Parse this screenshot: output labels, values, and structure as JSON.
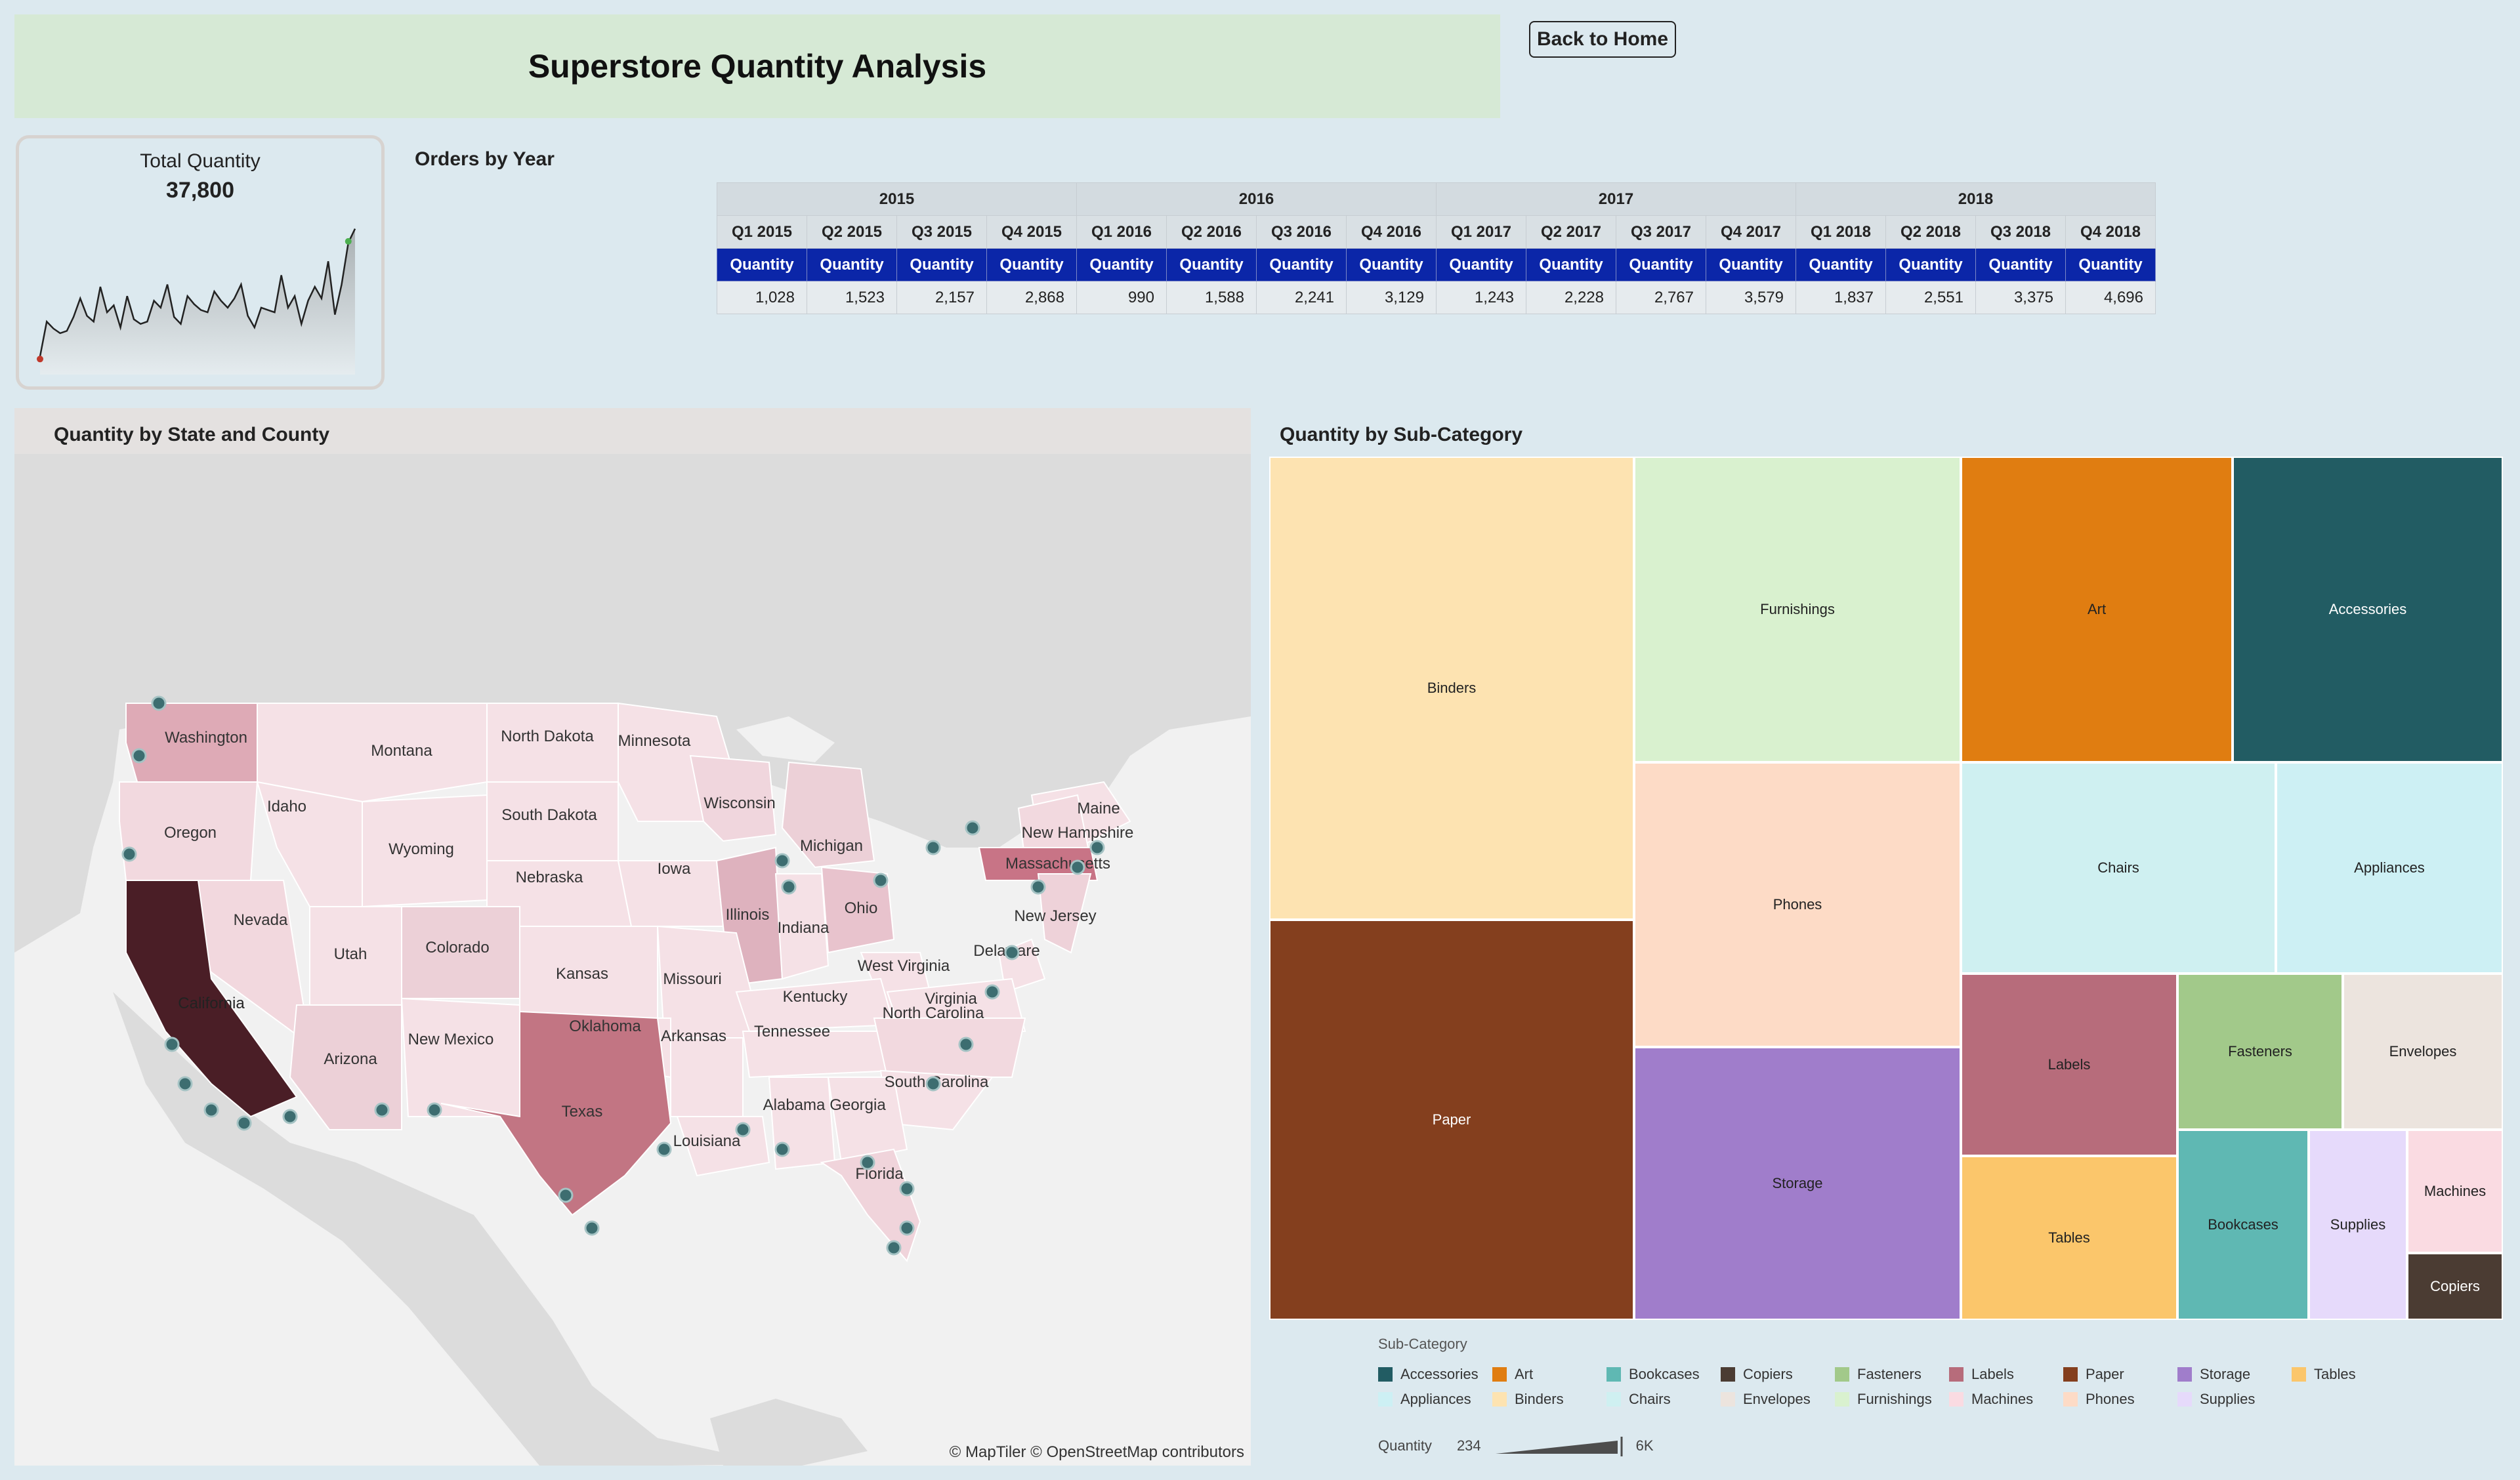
{
  "header": {
    "title": "Superstore Quantity Analysis",
    "back_label": "Back to Home"
  },
  "kpi": {
    "label": "Total Quantity",
    "value": "37,800",
    "sparkline": [
      10,
      40,
      34,
      30,
      32,
      44,
      60,
      45,
      40,
      70,
      48,
      54,
      35,
      62,
      42,
      38,
      40,
      58,
      52,
      72,
      44,
      38,
      62,
      55,
      50,
      48,
      66,
      58,
      52,
      60,
      72,
      45,
      35,
      52,
      50,
      48,
      80,
      52,
      62,
      38,
      58,
      70,
      60,
      92,
      46,
      72,
      108,
      120
    ],
    "start_marker_color": "#c0392b",
    "end_marker_color": "#4caf50"
  },
  "orders": {
    "title": "Orders by Year",
    "years": [
      "2015",
      "2016",
      "2017",
      "2018"
    ],
    "quarters": [
      "Q1 2015",
      "Q2 2015",
      "Q3 2015",
      "Q4 2015",
      "Q1 2016",
      "Q2 2016",
      "Q3 2016",
      "Q4 2016",
      "Q1 2017",
      "Q2 2017",
      "Q3 2017",
      "Q4 2017",
      "Q1 2018",
      "Q2 2018",
      "Q3 2018",
      "Q4 2018"
    ],
    "measure": "Quantity",
    "values": [
      "1,028",
      "1,523",
      "2,157",
      "2,868",
      "990",
      "1,588",
      "2,241",
      "3,129",
      "1,243",
      "2,228",
      "2,767",
      "3,579",
      "1,837",
      "2,551",
      "3,375",
      "4,696"
    ]
  },
  "map": {
    "title": "Quantity by State and County",
    "credit": "© MapTiler © OpenStreetMap contributors",
    "states": [
      "Washington",
      "Montana",
      "North Dakota",
      "Minnesota",
      "Maine",
      "Oregon",
      "Idaho",
      "South Dakota",
      "Wisconsin",
      "Michigan",
      "New Hampshire",
      "Massachusetts",
      "Wyoming",
      "Nebraska",
      "Iowa",
      "Illinois",
      "Indiana",
      "Ohio",
      "New Jersey",
      "Nevada",
      "Utah",
      "Colorado",
      "Kansas",
      "Missouri",
      "West Virginia",
      "Delaware",
      "Kentucky",
      "Virginia",
      "California",
      "Oklahoma",
      "Tennessee",
      "North Carolina",
      "Arizona",
      "New Mexico",
      "Arkansas",
      "South Carolina",
      "Texas",
      "Alabama",
      "Georgia",
      "Louisiana",
      "Florida"
    ]
  },
  "treemap": {
    "title": "Quantity by Sub-Category",
    "tiles": [
      {
        "name": "Binders",
        "color": "#fde3b1",
        "text": "#222"
      },
      {
        "name": "Paper",
        "color": "#843f1e",
        "text": "#fff"
      },
      {
        "name": "Furnishings",
        "color": "#d9f1cf",
        "text": "#222"
      },
      {
        "name": "Phones",
        "color": "#fddbc6",
        "text": "#222"
      },
      {
        "name": "Storage",
        "color": "#a07dcb",
        "text": "#222"
      },
      {
        "name": "Art",
        "color": "#e07d11",
        "text": "#222"
      },
      {
        "name": "Accessories",
        "color": "#225c63",
        "text": "#fff"
      },
      {
        "name": "Chairs",
        "color": "#cff0f1",
        "text": "#222"
      },
      {
        "name": "Appliances",
        "color": "#cdf0f4",
        "text": "#222"
      },
      {
        "name": "Labels",
        "color": "#b76c7b",
        "text": "#222"
      },
      {
        "name": "Fasteners",
        "color": "#a2c98a",
        "text": "#222"
      },
      {
        "name": "Envelopes",
        "color": "#ece4de",
        "text": "#222"
      },
      {
        "name": "Tables",
        "color": "#fbc66b",
        "text": "#222"
      },
      {
        "name": "Bookcases",
        "color": "#5fb8b3",
        "text": "#222"
      },
      {
        "name": "Supplies",
        "color": "#e6dafb",
        "text": "#222"
      },
      {
        "name": "Machines",
        "color": "#fadbe2",
        "text": "#222"
      },
      {
        "name": "Copiers",
        "color": "#4b3c33",
        "text": "#fff"
      }
    ]
  },
  "legend": {
    "title": "Sub-Category",
    "row1": [
      {
        "label": "Accessories",
        "color": "#225c63"
      },
      {
        "label": "Art",
        "color": "#e07d11"
      },
      {
        "label": "Bookcases",
        "color": "#5fb8b3"
      },
      {
        "label": "Copiers",
        "color": "#4b3c33"
      },
      {
        "label": "Fasteners",
        "color": "#a2c98a"
      },
      {
        "label": "Labels",
        "color": "#b76c7b"
      },
      {
        "label": "Paper",
        "color": "#843f1e"
      },
      {
        "label": "Storage",
        "color": "#a07dcb"
      },
      {
        "label": "Tables",
        "color": "#fbc66b"
      }
    ],
    "row2": [
      {
        "label": "Appliances",
        "color": "#cdf0f4"
      },
      {
        "label": "Binders",
        "color": "#fde3b1"
      },
      {
        "label": "Chairs",
        "color": "#cff0f1"
      },
      {
        "label": "Envelopes",
        "color": "#ece4de"
      },
      {
        "label": "Furnishings",
        "color": "#d9f1cf"
      },
      {
        "label": "Machines",
        "color": "#fadbe2"
      },
      {
        "label": "Phones",
        "color": "#fddbc6"
      },
      {
        "label": "Supplies",
        "color": "#e6dafb"
      }
    ],
    "quantity_label": "Quantity",
    "quantity_min": "234",
    "quantity_max": "6K"
  }
}
